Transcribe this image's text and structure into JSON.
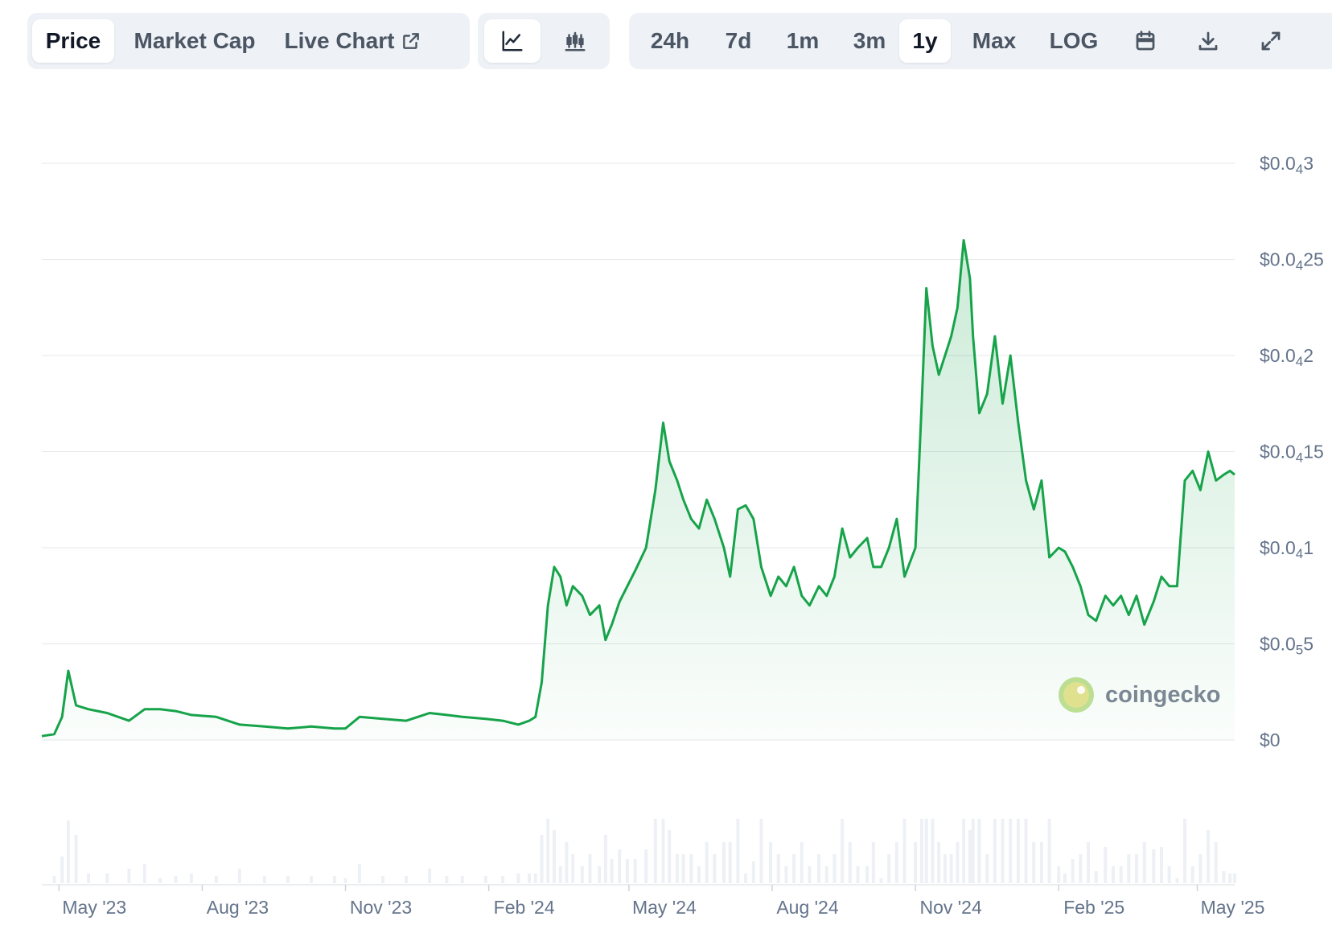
{
  "toolbar": {
    "views": [
      {
        "label": "Price",
        "active": true
      },
      {
        "label": "Market Cap",
        "active": false
      },
      {
        "label": "Live Chart",
        "active": false,
        "icon": "external-link-icon"
      }
    ],
    "chart_types": [
      {
        "icon": "line-chart-icon",
        "active": true
      },
      {
        "icon": "candlestick-chart-icon",
        "active": false
      }
    ],
    "ranges": [
      {
        "label": "24h",
        "active": false
      },
      {
        "label": "7d",
        "active": false
      },
      {
        "label": "1m",
        "active": false
      },
      {
        "label": "3m",
        "active": false
      },
      {
        "label": "1y",
        "active": true
      },
      {
        "label": "Max",
        "active": false
      },
      {
        "label": "LOG",
        "active": false
      }
    ],
    "tools": [
      "calendar-icon",
      "download-icon",
      "expand-icon"
    ]
  },
  "watermark": {
    "text": "coingecko",
    "icon": "coingecko-logo-icon"
  },
  "colors": {
    "line": "#16a34a",
    "fill": "#16a34a",
    "grid": "#e5e7eb",
    "volume": "#cbd5e1"
  },
  "chart_data": {
    "type": "area",
    "title": "",
    "xlabel": "",
    "ylabel": "",
    "grid": true,
    "yticks": [
      {
        "prefix": "$0.0",
        "sub": "4",
        "suffix": "3",
        "value": 3e-05
      },
      {
        "prefix": "$0.0",
        "sub": "4",
        "suffix": "25",
        "value": 2.5e-05
      },
      {
        "prefix": "$0.0",
        "sub": "4",
        "suffix": "2",
        "value": 2e-05
      },
      {
        "prefix": "$0.0",
        "sub": "4",
        "suffix": "15",
        "value": 1.5e-05
      },
      {
        "prefix": "$0.0",
        "sub": "4",
        "suffix": "1",
        "value": 1e-05
      },
      {
        "prefix": "$0.0",
        "sub": "5",
        "suffix": "5",
        "value": 5e-06
      },
      {
        "prefix": "$0",
        "sub": "",
        "suffix": "",
        "value": 0
      }
    ],
    "ylim": [
      0,
      3e-05
    ],
    "xlim": [
      "2023-04-20",
      "2025-05-25"
    ],
    "xticks": [
      {
        "label": "May '23",
        "date": "2023-05-01"
      },
      {
        "label": "Aug '23",
        "date": "2023-08-01"
      },
      {
        "label": "Nov '23",
        "date": "2023-11-01"
      },
      {
        "label": "Feb '24",
        "date": "2024-02-01"
      },
      {
        "label": "May '24",
        "date": "2024-05-01"
      },
      {
        "label": "Aug '24",
        "date": "2024-08-01"
      },
      {
        "label": "Nov '24",
        "date": "2024-11-01"
      },
      {
        "label": "Feb '25",
        "date": "2025-02-01"
      },
      {
        "label": "May '25",
        "date": "2025-05-01"
      }
    ],
    "series": [
      {
        "x": [
          "2023-04-20",
          "2023-04-28",
          "2023-05-03",
          "2023-05-07",
          "2023-05-12",
          "2023-05-20",
          "2023-06-01",
          "2023-06-15",
          "2023-06-25",
          "2023-07-05",
          "2023-07-15",
          "2023-07-25",
          "2023-08-10",
          "2023-08-25",
          "2023-09-10",
          "2023-09-25",
          "2023-10-10",
          "2023-10-25",
          "2023-11-01",
          "2023-11-10",
          "2023-11-25",
          "2023-12-10",
          "2023-12-25",
          "2024-01-05",
          "2024-01-15",
          "2024-01-30",
          "2024-02-10",
          "2024-02-20",
          "2024-02-27",
          "2024-03-02",
          "2024-03-06",
          "2024-03-10",
          "2024-03-14",
          "2024-03-18",
          "2024-03-22",
          "2024-03-26",
          "2024-04-01",
          "2024-04-06",
          "2024-04-12",
          "2024-04-16",
          "2024-04-20",
          "2024-04-25",
          "2024-04-30",
          "2024-05-05",
          "2024-05-12",
          "2024-05-18",
          "2024-05-23",
          "2024-05-27",
          "2024-06-01",
          "2024-06-05",
          "2024-06-10",
          "2024-06-15",
          "2024-06-20",
          "2024-06-25",
          "2024-07-01",
          "2024-07-05",
          "2024-07-10",
          "2024-07-15",
          "2024-07-20",
          "2024-07-25",
          "2024-07-31",
          "2024-08-05",
          "2024-08-10",
          "2024-08-15",
          "2024-08-20",
          "2024-08-25",
          "2024-08-31",
          "2024-09-05",
          "2024-09-10",
          "2024-09-15",
          "2024-09-20",
          "2024-09-25",
          "2024-10-01",
          "2024-10-05",
          "2024-10-10",
          "2024-10-15",
          "2024-10-20",
          "2024-10-25",
          "2024-11-01",
          "2024-11-05",
          "2024-11-08",
          "2024-11-12",
          "2024-11-16",
          "2024-11-20",
          "2024-11-24",
          "2024-11-28",
          "2024-12-02",
          "2024-12-06",
          "2024-12-08",
          "2024-12-12",
          "2024-12-17",
          "2024-12-22",
          "2024-12-27",
          "2025-01-01",
          "2025-01-06",
          "2025-01-11",
          "2025-01-16",
          "2025-01-21",
          "2025-01-26",
          "2025-02-01",
          "2025-02-05",
          "2025-02-10",
          "2025-02-15",
          "2025-02-20",
          "2025-02-25",
          "2025-03-03",
          "2025-03-08",
          "2025-03-13",
          "2025-03-18",
          "2025-03-23",
          "2025-03-28",
          "2025-04-03",
          "2025-04-08",
          "2025-04-13",
          "2025-04-18",
          "2025-04-23",
          "2025-04-28",
          "2025-05-03",
          "2025-05-08",
          "2025-05-13",
          "2025-05-18",
          "2025-05-22",
          "2025-05-25"
        ],
        "y": [
          2e-07,
          3e-07,
          1.2e-06,
          3.6e-06,
          1.8e-06,
          1.6e-06,
          1.4e-06,
          1e-06,
          1.6e-06,
          1.6e-06,
          1.5e-06,
          1.3e-06,
          1.2e-06,
          8e-07,
          7e-07,
          6e-07,
          7e-07,
          6e-07,
          6e-07,
          1.2e-06,
          1.1e-06,
          1e-06,
          1.4e-06,
          1.3e-06,
          1.2e-06,
          1.1e-06,
          1e-06,
          8e-07,
          1e-06,
          1.2e-06,
          3e-06,
          7e-06,
          9e-06,
          8.5e-06,
          7e-06,
          8e-06,
          7.5e-06,
          6.5e-06,
          7e-06,
          5.2e-06,
          6e-06,
          7.2e-06,
          8e-06,
          8.8e-06,
          1e-05,
          1.3e-05,
          1.65e-05,
          1.45e-05,
          1.35e-05,
          1.25e-05,
          1.15e-05,
          1.1e-05,
          1.25e-05,
          1.15e-05,
          1e-05,
          8.5e-06,
          1.2e-05,
          1.22e-05,
          1.15e-05,
          9e-06,
          7.5e-06,
          8.5e-06,
          8e-06,
          9e-06,
          7.5e-06,
          7e-06,
          8e-06,
          7.5e-06,
          8.5e-06,
          1.1e-05,
          9.5e-06,
          1e-05,
          1.05e-05,
          9e-06,
          9e-06,
          1e-05,
          1.15e-05,
          8.5e-06,
          1e-05,
          1.75e-05,
          2.35e-05,
          2.05e-05,
          1.9e-05,
          2e-05,
          2.1e-05,
          2.25e-05,
          2.6e-05,
          2.4e-05,
          2.1e-05,
          1.7e-05,
          1.8e-05,
          2.1e-05,
          1.75e-05,
          2e-05,
          1.65e-05,
          1.35e-05,
          1.2e-05,
          1.35e-05,
          9.5e-06,
          1e-05,
          9.8e-06,
          9e-06,
          8e-06,
          6.5e-06,
          6.2e-06,
          7.5e-06,
          7e-06,
          7.5e-06,
          6.5e-06,
          7.5e-06,
          6e-06,
          7.2e-06,
          8.5e-06,
          8e-06,
          8e-06,
          1.35e-05,
          1.4e-05,
          1.3e-05,
          1.5e-05,
          1.35e-05,
          1.38e-05,
          1.4e-05,
          1.38e-05
        ]
      }
    ]
  }
}
